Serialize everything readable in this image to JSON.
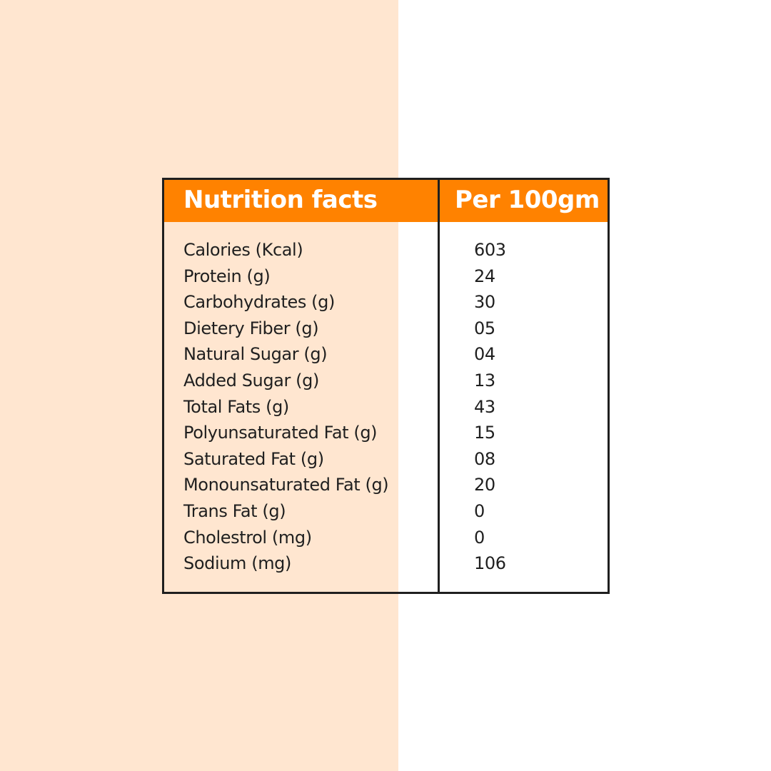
{
  "colors": {
    "left_background": "#ffe6d0",
    "right_background": "#ffffff",
    "header_background": "#ff8200",
    "header_text": "#ffffff",
    "border": "#1f1f1f",
    "body_text": "#1f1f1f"
  },
  "table": {
    "header": {
      "title": "Nutrition facts",
      "per": "Per 100gm"
    },
    "rows": [
      {
        "label": "Calories (Kcal)",
        "value": "603"
      },
      {
        "label": "Protein (g)",
        "value": "24"
      },
      {
        "label": "Carbohydrates (g)",
        "value": "30"
      },
      {
        "label": "Dietery Fiber (g)",
        "value": "05"
      },
      {
        "label": "Natural Sugar (g)",
        "value": "04"
      },
      {
        "label": "Added Sugar (g)",
        "value": "13"
      },
      {
        "label": "Total Fats (g)",
        "value": "43"
      },
      {
        "label": "Polyunsaturated Fat (g)",
        "value": "15"
      },
      {
        "label": "Saturated Fat (g)",
        "value": "08"
      },
      {
        "label": "Monounsaturated Fat (g)",
        "value": "20"
      },
      {
        "label": "Trans Fat (g)",
        "value": "0"
      },
      {
        "label": "Cholestrol (mg)",
        "value": "0"
      },
      {
        "label": "Sodium (mg)",
        "value": "106"
      }
    ]
  }
}
